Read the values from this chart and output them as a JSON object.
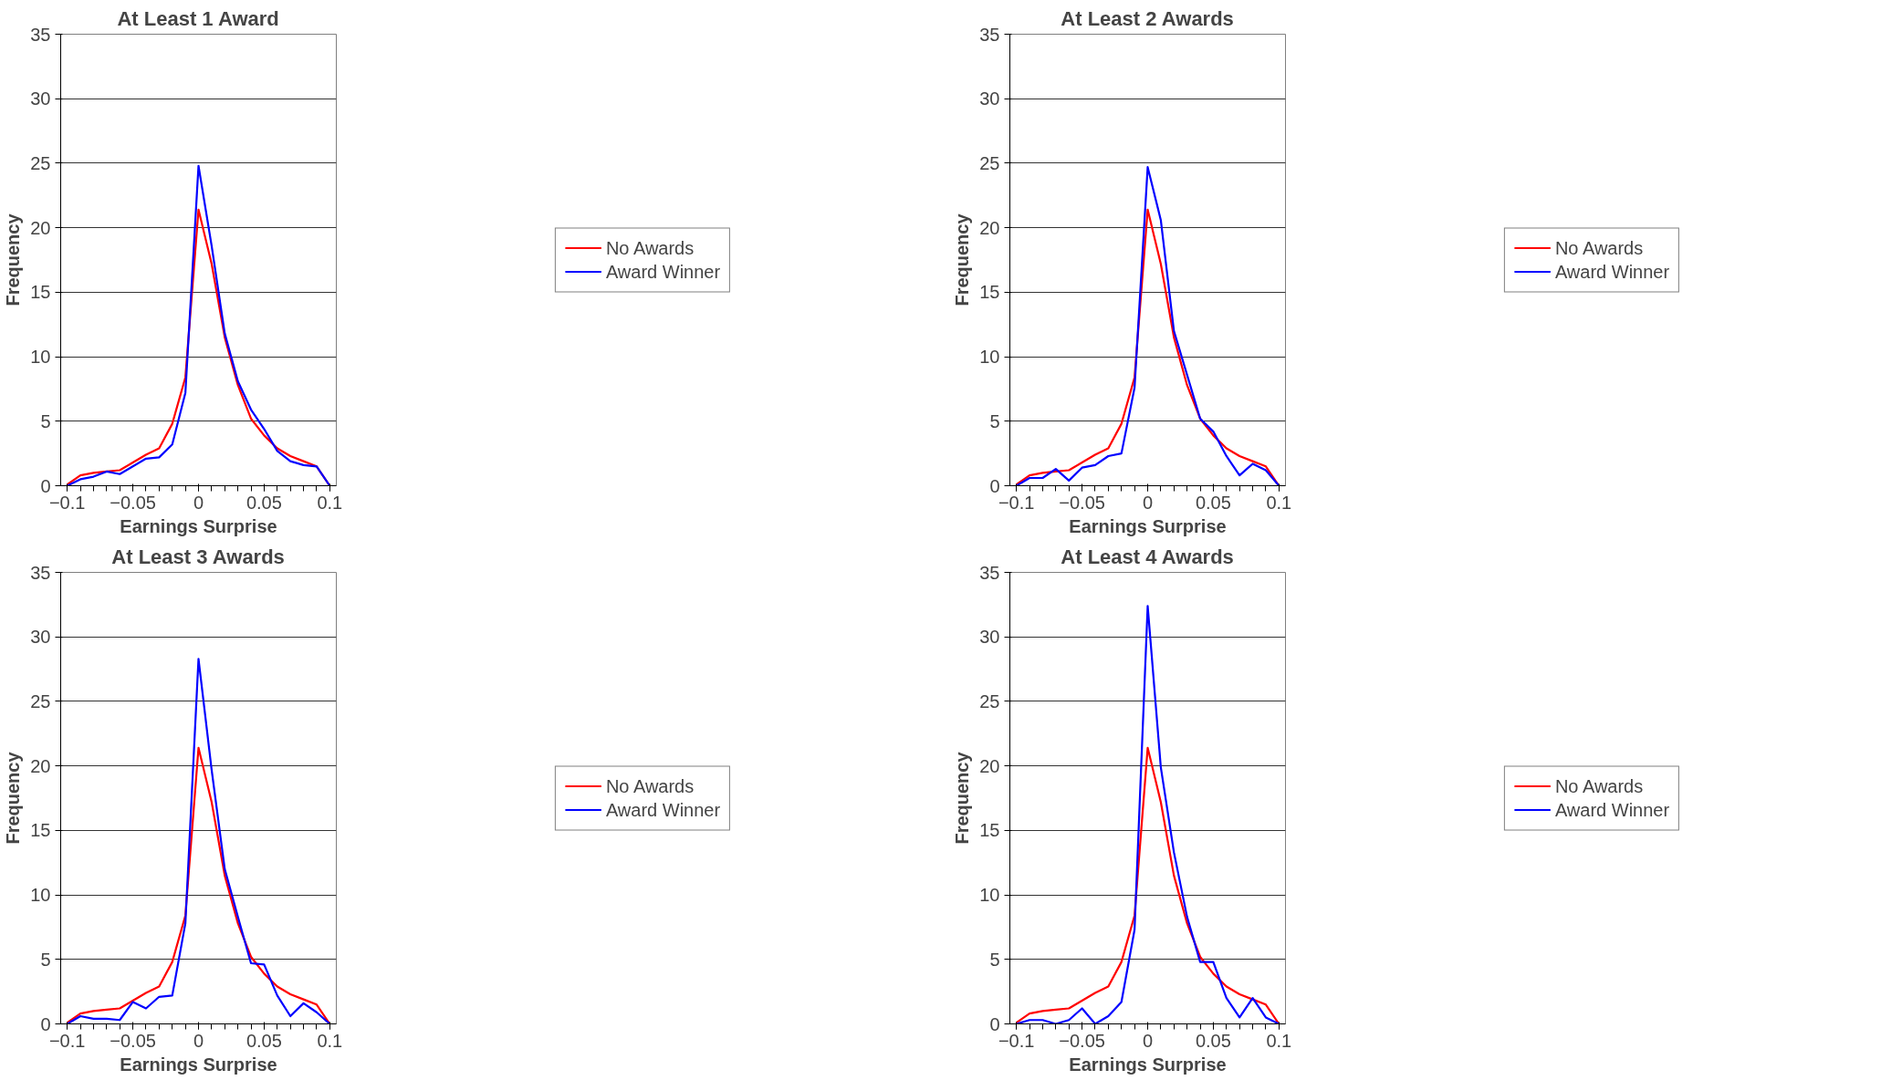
{
  "chart_data": [
    {
      "type": "line",
      "title": "At Least 1 Award",
      "xlabel": "Earnings Surprise",
      "ylabel": "Frequency",
      "x": [
        -0.1,
        -0.09,
        -0.08,
        -0.07,
        -0.06,
        -0.05,
        -0.04,
        -0.03,
        -0.02,
        -0.01,
        0,
        0.01,
        0.02,
        0.03,
        0.04,
        0.05,
        0.06,
        0.07,
        0.08,
        0.09,
        0.1
      ],
      "xlim": [
        -0.105,
        0.105
      ],
      "xticks": [
        -0.1,
        -0.05,
        0,
        0.05,
        0.1
      ],
      "ylim": [
        0,
        35
      ],
      "yticks": [
        0,
        5,
        10,
        15,
        20,
        25,
        30,
        35
      ],
      "grid": "y",
      "legend": "right",
      "series": [
        {
          "name": "No Awards",
          "color": "#ff0000",
          "values": [
            0.1,
            0.8,
            1.0,
            1.1,
            1.2,
            1.8,
            2.4,
            2.9,
            4.8,
            8.4,
            21.4,
            17.2,
            11.5,
            7.8,
            5.2,
            3.9,
            2.9,
            2.3,
            1.9,
            1.5,
            0
          ]
        },
        {
          "name": "Award Winner",
          "color": "#0000ff",
          "values": [
            0,
            0.5,
            0.7,
            1.1,
            0.9,
            1.5,
            2.1,
            2.2,
            3.2,
            7.2,
            24.8,
            18.6,
            11.8,
            8.1,
            5.9,
            4.4,
            2.7,
            1.9,
            1.6,
            1.5,
            0
          ]
        }
      ]
    },
    {
      "type": "line",
      "title": "At Least 2 Awards",
      "xlabel": "Earnings Surprise",
      "ylabel": "Frequency",
      "x": [
        -0.1,
        -0.09,
        -0.08,
        -0.07,
        -0.06,
        -0.05,
        -0.04,
        -0.03,
        -0.02,
        -0.01,
        0,
        0.01,
        0.02,
        0.03,
        0.04,
        0.05,
        0.06,
        0.07,
        0.08,
        0.09,
        0.1
      ],
      "xlim": [
        -0.105,
        0.105
      ],
      "xticks": [
        -0.1,
        -0.05,
        0,
        0.05,
        0.1
      ],
      "ylim": [
        0,
        35
      ],
      "yticks": [
        0,
        5,
        10,
        15,
        20,
        25,
        30,
        35
      ],
      "grid": "y",
      "legend": "right",
      "series": [
        {
          "name": "No Awards",
          "color": "#ff0000",
          "values": [
            0.1,
            0.8,
            1.0,
            1.1,
            1.2,
            1.8,
            2.4,
            2.9,
            4.8,
            8.4,
            21.4,
            17.2,
            11.5,
            7.8,
            5.2,
            3.9,
            2.9,
            2.3,
            1.9,
            1.5,
            0
          ]
        },
        {
          "name": "Award Winner",
          "color": "#0000ff",
          "values": [
            0,
            0.6,
            0.6,
            1.3,
            0.4,
            1.4,
            1.6,
            2.3,
            2.5,
            7.6,
            24.7,
            20.6,
            12.0,
            8.6,
            5.2,
            4.2,
            2.3,
            0.8,
            1.7,
            1.2,
            0
          ]
        }
      ]
    },
    {
      "type": "line",
      "title": "At Least 3 Awards",
      "xlabel": "Earnings Surprise",
      "ylabel": "Frequency",
      "x": [
        -0.1,
        -0.09,
        -0.08,
        -0.07,
        -0.06,
        -0.05,
        -0.04,
        -0.03,
        -0.02,
        -0.01,
        0,
        0.01,
        0.02,
        0.03,
        0.04,
        0.05,
        0.06,
        0.07,
        0.08,
        0.09,
        0.1
      ],
      "xlim": [
        -0.105,
        0.105
      ],
      "xticks": [
        -0.1,
        -0.05,
        0,
        0.05,
        0.1
      ],
      "ylim": [
        0,
        35
      ],
      "yticks": [
        0,
        5,
        10,
        15,
        20,
        25,
        30,
        35
      ],
      "grid": "y",
      "legend": "right",
      "series": [
        {
          "name": "No Awards",
          "color": "#ff0000",
          "values": [
            0.1,
            0.8,
            1.0,
            1.1,
            1.2,
            1.8,
            2.4,
            2.9,
            4.8,
            8.4,
            21.4,
            17.2,
            11.5,
            7.8,
            5.2,
            3.9,
            2.9,
            2.3,
            1.9,
            1.5,
            0
          ]
        },
        {
          "name": "Award Winner",
          "color": "#0000ff",
          "values": [
            0,
            0.6,
            0.4,
            0.4,
            0.3,
            1.7,
            1.2,
            2.1,
            2.2,
            7.8,
            28.3,
            19.7,
            12.0,
            8.3,
            4.7,
            4.6,
            2.2,
            0.6,
            1.6,
            0.9,
            0
          ]
        }
      ]
    },
    {
      "type": "line",
      "title": "At Least 4 Awards",
      "xlabel": "Earnings Surprise",
      "ylabel": "Frequency",
      "x": [
        -0.1,
        -0.09,
        -0.08,
        -0.07,
        -0.06,
        -0.05,
        -0.04,
        -0.03,
        -0.02,
        -0.01,
        0,
        0.01,
        0.02,
        0.03,
        0.04,
        0.05,
        0.06,
        0.07,
        0.08,
        0.09,
        0.1
      ],
      "xlim": [
        -0.105,
        0.105
      ],
      "xticks": [
        -0.1,
        -0.05,
        0,
        0.05,
        0.1
      ],
      "ylim": [
        0,
        35
      ],
      "yticks": [
        0,
        5,
        10,
        15,
        20,
        25,
        30,
        35
      ],
      "grid": "y",
      "legend": "right",
      "series": [
        {
          "name": "No Awards",
          "color": "#ff0000",
          "values": [
            0.1,
            0.8,
            1.0,
            1.1,
            1.2,
            1.8,
            2.4,
            2.9,
            4.8,
            8.4,
            21.4,
            17.2,
            11.5,
            7.8,
            5.2,
            3.9,
            2.9,
            2.3,
            1.9,
            1.5,
            0
          ]
        },
        {
          "name": "Award Winner",
          "color": "#0000ff",
          "values": [
            0,
            0.3,
            0.3,
            0,
            0.3,
            1.2,
            0,
            0.6,
            1.7,
            7.3,
            32.4,
            19.9,
            13.3,
            8.3,
            4.8,
            4.8,
            2.0,
            0.5,
            2.0,
            0.5,
            0
          ]
        }
      ]
    }
  ]
}
